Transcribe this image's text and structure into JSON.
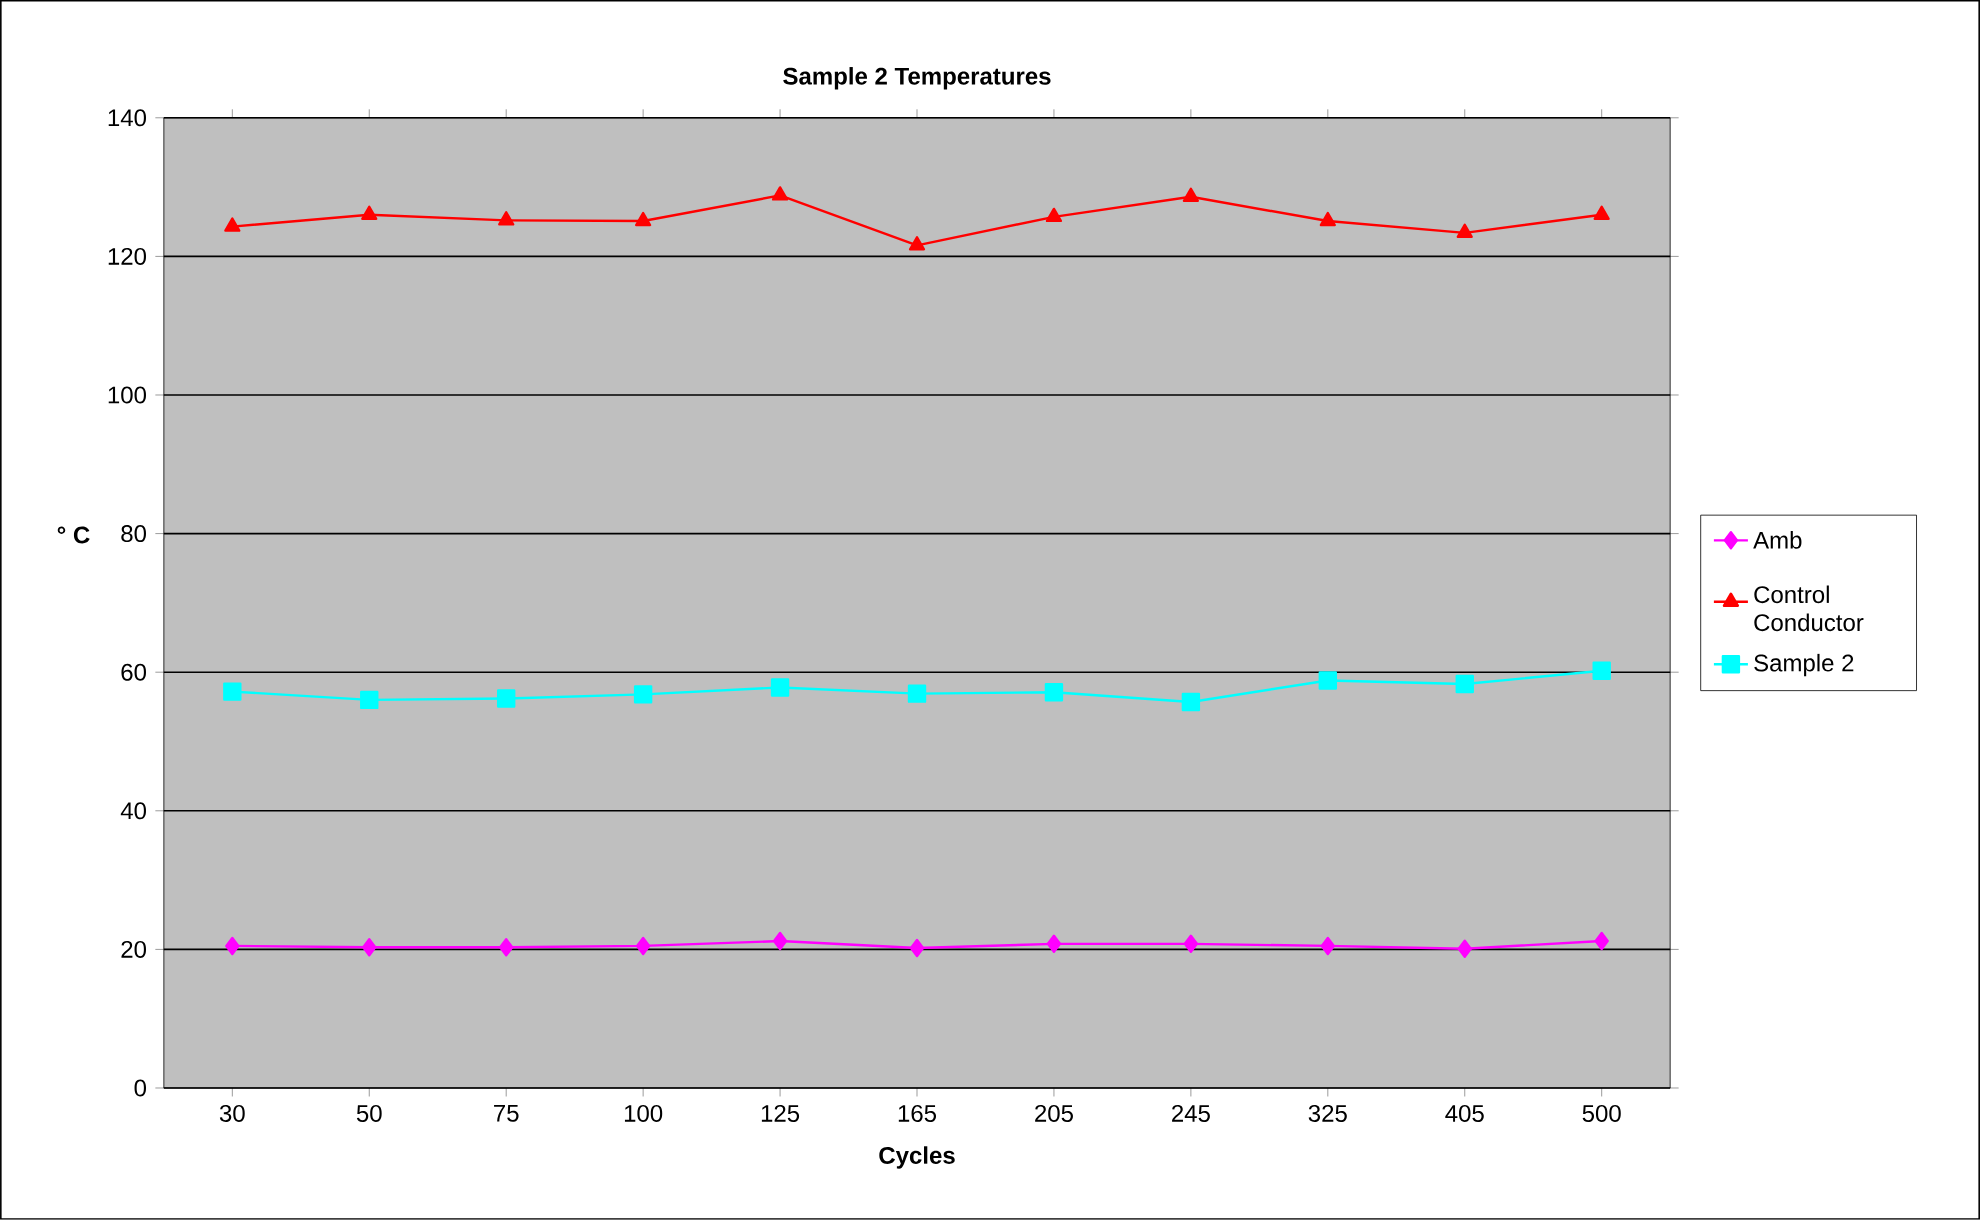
{
  "chart_data": {
    "type": "line",
    "title": "Sample 2 Temperatures",
    "xlabel": "Cycles",
    "ylabel": "° C",
    "categories": [
      "30",
      "50",
      "75",
      "100",
      "125",
      "165",
      "205",
      "245",
      "325",
      "405",
      "500"
    ],
    "series": [
      {
        "name": "Amb",
        "color": "#ff00ff",
        "marker": "diamond",
        "values": [
          20.5,
          20.3,
          20.3,
          20.5,
          21.2,
          20.2,
          20.8,
          20.8,
          20.5,
          20.1,
          21.2
        ]
      },
      {
        "name": "Control Conductor",
        "color": "#ff0000",
        "marker": "triangle",
        "values": [
          124.3,
          126,
          125.2,
          125.1,
          128.8,
          121.6,
          125.7,
          128.6,
          125.1,
          123.4,
          126
        ]
      },
      {
        "name": "Sample 2",
        "color": "#00ffff",
        "marker": "square",
        "values": [
          57.2,
          56,
          56.2,
          56.8,
          57.8,
          56.9,
          57.1,
          55.7,
          58.8,
          58.3,
          60.2
        ]
      }
    ],
    "ylim": [
      0,
      140
    ],
    "yticks": [
      0,
      20,
      40,
      60,
      80,
      100,
      120,
      140
    ],
    "grid": "y",
    "legend": "right",
    "line_style": "solid"
  }
}
